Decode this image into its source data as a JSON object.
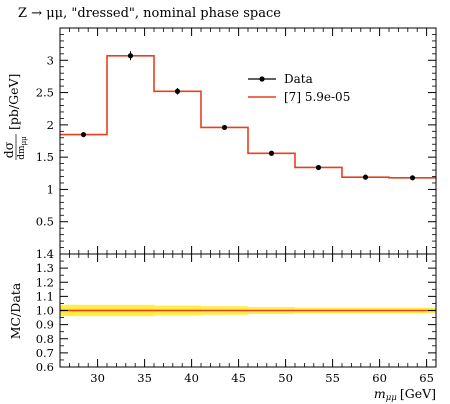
{
  "chart_data": [
    {
      "type": "line",
      "panel": "main",
      "title": "Z → μμ, \"dressed\", nominal phase space",
      "ylabel_prefix": "dσ",
      "ylabel_den": "dm",
      "ylabel_den_sub": "μμ",
      "ylabel_unit": "[pb/GeV]",
      "xlim": [
        26,
        66
      ],
      "ylim": [
        0,
        3.5
      ],
      "y_ticks": [
        "0.5",
        "1",
        "1.5",
        "2",
        "2.5",
        "3"
      ],
      "y_tick_values": [
        0.5,
        1,
        1.5,
        2,
        2.5,
        3
      ],
      "x_ticks": [
        "30",
        "35",
        "40",
        "45",
        "50",
        "55",
        "60",
        "65"
      ],
      "x_tick_values": [
        30,
        35,
        40,
        45,
        50,
        55,
        60,
        65
      ],
      "legend_position": "top-right",
      "colors": {
        "data": "#000000",
        "mc": "#e8401c"
      },
      "series": [
        {
          "name": "Data",
          "x": [
            28.5,
            33.5,
            38.5,
            43.5,
            48.5,
            53.5,
            58.5,
            63.5
          ],
          "y": [
            1.85,
            3.07,
            2.52,
            1.96,
            1.56,
            1.34,
            1.19,
            1.18
          ],
          "yerr": [
            0.04,
            0.07,
            0.05,
            0.03,
            0.02,
            0.02,
            0.015,
            0.015
          ]
        },
        {
          "name": "[7] 5.9e-05",
          "bin_edges": [
            26,
            31,
            36,
            41,
            46,
            51,
            56,
            61,
            66
          ],
          "values": [
            1.85,
            3.07,
            2.52,
            1.96,
            1.56,
            1.34,
            1.19,
            1.18
          ]
        }
      ]
    },
    {
      "type": "line",
      "panel": "ratio",
      "ylabel": "MC/Data",
      "xlabel_var": "m",
      "xlabel_sub": "μμ",
      "xlabel_unit": "[GeV]",
      "xlim": [
        26,
        66
      ],
      "ylim": [
        0.6,
        1.4
      ],
      "y_ticks": [
        "0.6",
        "0.7",
        "0.8",
        "0.9",
        "1.0",
        "1.1",
        "1.2",
        "1.3",
        "1.4"
      ],
      "y_tick_values": [
        0.6,
        0.7,
        0.8,
        0.9,
        1.0,
        1.1,
        1.2,
        1.3,
        1.4
      ],
      "x_ticks": [
        "30",
        "35",
        "40",
        "45",
        "50",
        "55",
        "60",
        "65"
      ],
      "x_tick_values": [
        30,
        35,
        40,
        45,
        50,
        55,
        60,
        65
      ],
      "colors": {
        "band_outer": "#ffee44",
        "band_inner": "#f5d800",
        "line": "#e8401c"
      },
      "band": {
        "bin_edges": [
          26,
          31,
          36,
          41,
          46,
          51,
          56,
          61,
          66
        ],
        "outer_halfwidth": [
          0.04,
          0.04,
          0.035,
          0.03,
          0.025,
          0.02,
          0.02,
          0.02
        ],
        "inner_halfwidth": [
          0.012,
          0.012,
          0.01,
          0.009,
          0.008,
          0.007,
          0.007,
          0.007
        ]
      },
      "ratio_values": [
        1.0,
        1.0,
        1.0,
        1.0,
        1.0,
        1.0,
        1.0,
        1.0
      ]
    }
  ]
}
